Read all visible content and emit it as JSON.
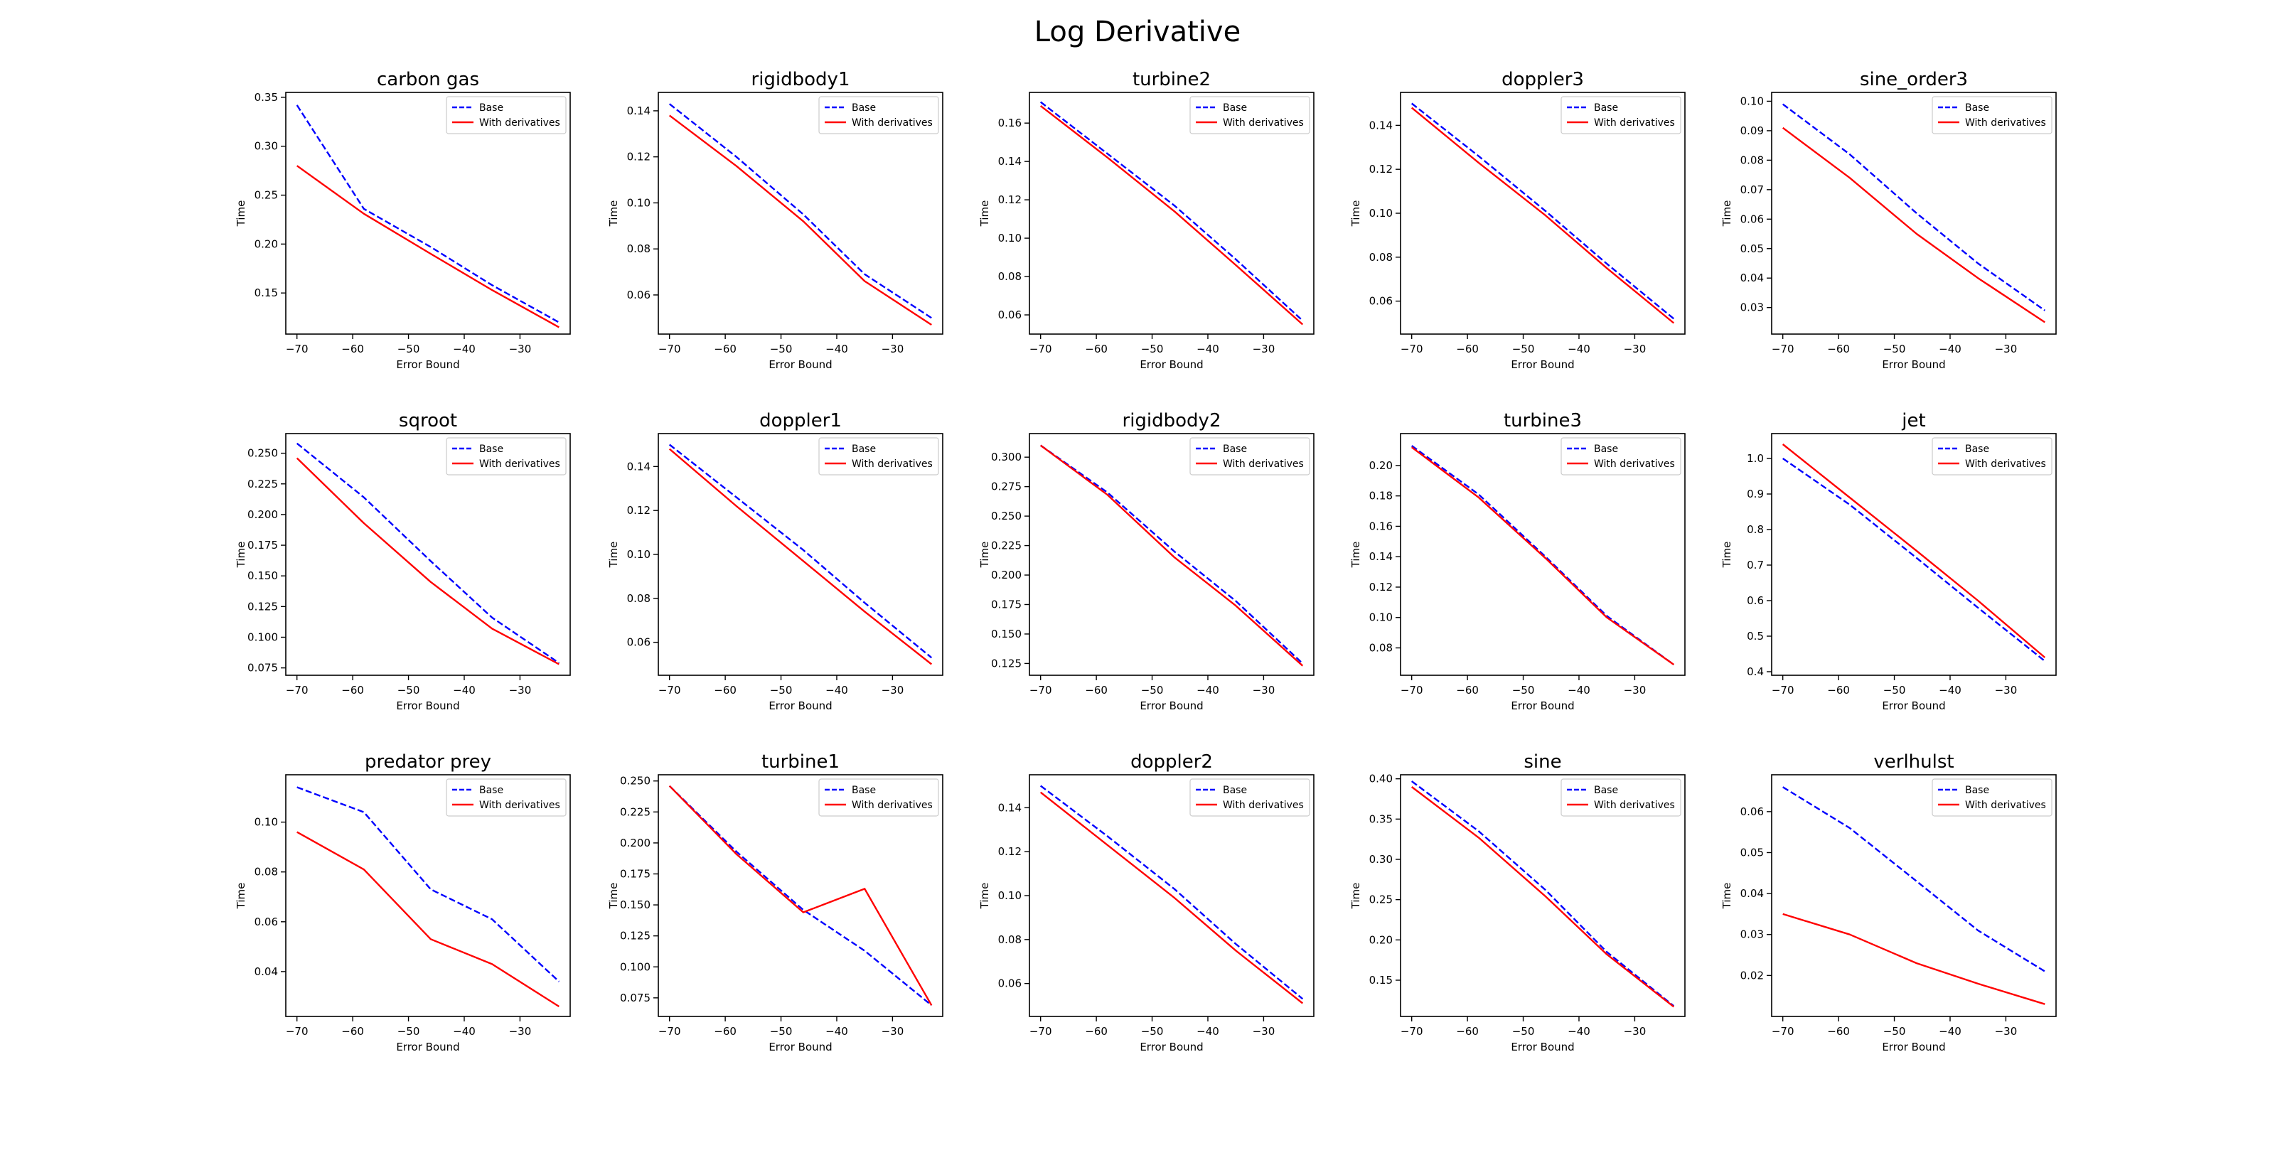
{
  "figure": {
    "title": "Log Derivative",
    "colors": {
      "base": "#0000ff",
      "deriv": "#ff0000"
    }
  },
  "chart_data": [
    {
      "type": "line",
      "title": "carbon gas",
      "xlabel": "Error Bound",
      "ylabel": "Time",
      "x": [
        -70,
        -58,
        -46,
        -35,
        -23
      ],
      "xlim": [
        -72,
        -21
      ],
      "ylim": [
        0.108,
        0.355
      ],
      "xticks": [
        -70,
        -60,
        -50,
        -40,
        -30
      ],
      "xticklabels": [
        "−70",
        "−60",
        "−50",
        "−40",
        "−30"
      ],
      "yticks": [
        0.15,
        0.2,
        0.25,
        0.3,
        0.35
      ],
      "yticklabels": [
        "0.15",
        "0.20",
        "0.25",
        "0.30",
        "0.35"
      ],
      "legend": "upper right",
      "series": [
        {
          "name": "Base",
          "style": "dashed",
          "color": "#0000ff",
          "values": [
            0.342,
            0.236,
            0.197,
            0.158,
            0.12
          ]
        },
        {
          "name": "With derivatives",
          "style": "solid",
          "color": "#ff0000",
          "values": [
            0.28,
            0.231,
            0.19,
            0.153,
            0.115
          ]
        }
      ]
    },
    {
      "type": "line",
      "title": "rigidbody1",
      "xlabel": "Error Bound",
      "ylabel": "Time",
      "x": [
        -70,
        -58,
        -46,
        -35,
        -23
      ],
      "xlim": [
        -72,
        -21
      ],
      "ylim": [
        0.043,
        0.148
      ],
      "xticks": [
        -70,
        -60,
        -50,
        -40,
        -30
      ],
      "xticklabels": [
        "−70",
        "−60",
        "−50",
        "−40",
        "−30"
      ],
      "yticks": [
        0.06,
        0.08,
        0.1,
        0.12,
        0.14
      ],
      "yticklabels": [
        "0.06",
        "0.08",
        "0.10",
        "0.12",
        "0.14"
      ],
      "legend": "upper right",
      "series": [
        {
          "name": "Base",
          "style": "dashed",
          "color": "#0000ff",
          "values": [
            0.143,
            0.12,
            0.095,
            0.069,
            0.05
          ]
        },
        {
          "name": "With derivatives",
          "style": "solid",
          "color": "#ff0000",
          "values": [
            0.138,
            0.116,
            0.092,
            0.066,
            0.047
          ]
        }
      ]
    },
    {
      "type": "line",
      "title": "turbine2",
      "xlabel": "Error Bound",
      "ylabel": "Time",
      "x": [
        -70,
        -58,
        -46,
        -35,
        -23
      ],
      "xlim": [
        -72,
        -21
      ],
      "ylim": [
        0.05,
        0.176
      ],
      "xticks": [
        -70,
        -60,
        -50,
        -40,
        -30
      ],
      "xticklabels": [
        "−70",
        "−60",
        "−50",
        "−40",
        "−30"
      ],
      "yticks": [
        0.06,
        0.08,
        0.1,
        0.12,
        0.14,
        0.16
      ],
      "yticklabels": [
        "0.06",
        "0.08",
        "0.10",
        "0.12",
        "0.14",
        "0.16"
      ],
      "legend": "upper right",
      "series": [
        {
          "name": "Base",
          "style": "dashed",
          "color": "#0000ff",
          "values": [
            0.171,
            0.144,
            0.117,
            0.089,
            0.057
          ]
        },
        {
          "name": "With derivatives",
          "style": "solid",
          "color": "#ff0000",
          "values": [
            0.169,
            0.142,
            0.114,
            0.086,
            0.055
          ]
        }
      ]
    },
    {
      "type": "line",
      "title": "doppler3",
      "xlabel": "Error Bound",
      "ylabel": "Time",
      "x": [
        -70,
        -58,
        -46,
        -35,
        -23
      ],
      "xlim": [
        -72,
        -21
      ],
      "ylim": [
        0.045,
        0.155
      ],
      "xticks": [
        -70,
        -60,
        -50,
        -40,
        -30
      ],
      "xticklabels": [
        "−70",
        "−60",
        "−50",
        "−40",
        "−30"
      ],
      "yticks": [
        0.06,
        0.08,
        0.1,
        0.12,
        0.14
      ],
      "yticklabels": [
        "0.06",
        "0.08",
        "0.10",
        "0.12",
        "0.14"
      ],
      "legend": "upper right",
      "series": [
        {
          "name": "Base",
          "style": "dashed",
          "color": "#0000ff",
          "values": [
            0.15,
            0.126,
            0.101,
            0.077,
            0.052
          ]
        },
        {
          "name": "With derivatives",
          "style": "solid",
          "color": "#ff0000",
          "values": [
            0.148,
            0.123,
            0.099,
            0.075,
            0.05
          ]
        }
      ]
    },
    {
      "type": "line",
      "title": "sine_order3",
      "xlabel": "Error Bound",
      "ylabel": "Time",
      "x": [
        -70,
        -58,
        -46,
        -35,
        -23
      ],
      "xlim": [
        -72,
        -21
      ],
      "ylim": [
        0.021,
        0.103
      ],
      "xticks": [
        -70,
        -60,
        -50,
        -40,
        -30
      ],
      "xticklabels": [
        "−70",
        "−60",
        "−50",
        "−40",
        "−30"
      ],
      "yticks": [
        0.03,
        0.04,
        0.05,
        0.06,
        0.07,
        0.08,
        0.09,
        0.1
      ],
      "yticklabels": [
        "0.03",
        "0.04",
        "0.05",
        "0.06",
        "0.07",
        "0.08",
        "0.09",
        "0.10"
      ],
      "legend": "upper right",
      "series": [
        {
          "name": "Base",
          "style": "dashed",
          "color": "#0000ff",
          "values": [
            0.099,
            0.082,
            0.062,
            0.045,
            0.029
          ]
        },
        {
          "name": "With derivatives",
          "style": "solid",
          "color": "#ff0000",
          "values": [
            0.091,
            0.074,
            0.055,
            0.04,
            0.025
          ]
        }
      ]
    },
    {
      "type": "line",
      "title": "sqroot",
      "xlabel": "Error Bound",
      "ylabel": "Time",
      "x": [
        -70,
        -58,
        -46,
        -35,
        -23
      ],
      "xlim": [
        -72,
        -21
      ],
      "ylim": [
        0.069,
        0.266
      ],
      "xticks": [
        -70,
        -60,
        -50,
        -40,
        -30
      ],
      "xticklabels": [
        "−70",
        "−60",
        "−50",
        "−40",
        "−30"
      ],
      "yticks": [
        0.075,
        0.1,
        0.125,
        0.15,
        0.175,
        0.2,
        0.225,
        0.25
      ],
      "yticklabels": [
        "0.075",
        "0.100",
        "0.125",
        "0.150",
        "0.175",
        "0.200",
        "0.225",
        "0.250"
      ],
      "legend": "upper right",
      "series": [
        {
          "name": "Base",
          "style": "dashed",
          "color": "#0000ff",
          "values": [
            0.258,
            0.214,
            0.162,
            0.116,
            0.079
          ]
        },
        {
          "name": "With derivatives",
          "style": "solid",
          "color": "#ff0000",
          "values": [
            0.246,
            0.193,
            0.145,
            0.107,
            0.078
          ]
        }
      ]
    },
    {
      "type": "line",
      "title": "doppler1",
      "xlabel": "Error Bound",
      "ylabel": "Time",
      "x": [
        -70,
        -58,
        -46,
        -35,
        -23
      ],
      "xlim": [
        -72,
        -21
      ],
      "ylim": [
        0.045,
        0.155
      ],
      "xticks": [
        -70,
        -60,
        -50,
        -40,
        -30
      ],
      "xticklabels": [
        "−70",
        "−60",
        "−50",
        "−40",
        "−30"
      ],
      "yticks": [
        0.06,
        0.08,
        0.1,
        0.12,
        0.14
      ],
      "yticklabels": [
        "0.06",
        "0.08",
        "0.10",
        "0.12",
        "0.14"
      ],
      "legend": "upper right",
      "series": [
        {
          "name": "Base",
          "style": "dashed",
          "color": "#0000ff",
          "values": [
            0.15,
            0.126,
            0.102,
            0.078,
            0.053
          ]
        },
        {
          "name": "With derivatives",
          "style": "solid",
          "color": "#ff0000",
          "values": [
            0.148,
            0.122,
            0.097,
            0.074,
            0.05
          ]
        }
      ]
    },
    {
      "type": "line",
      "title": "rigidbody2",
      "xlabel": "Error Bound",
      "ylabel": "Time",
      "x": [
        -70,
        -58,
        -46,
        -35,
        -23
      ],
      "xlim": [
        -72,
        -21
      ],
      "ylim": [
        0.115,
        0.32
      ],
      "xticks": [
        -70,
        -60,
        -50,
        -40,
        -30
      ],
      "xticklabels": [
        "−70",
        "−60",
        "−50",
        "−40",
        "−30"
      ],
      "yticks": [
        0.125,
        0.15,
        0.175,
        0.2,
        0.225,
        0.25,
        0.275,
        0.3
      ],
      "yticklabels": [
        "0.125",
        "0.150",
        "0.175",
        "0.200",
        "0.225",
        "0.250",
        "0.275",
        "0.300"
      ],
      "legend": "upper right",
      "series": [
        {
          "name": "Base",
          "style": "dashed",
          "color": "#0000ff",
          "values": [
            0.31,
            0.27,
            0.22,
            0.178,
            0.125
          ]
        },
        {
          "name": "With derivatives",
          "style": "solid",
          "color": "#ff0000",
          "values": [
            0.31,
            0.268,
            0.215,
            0.174,
            0.123
          ]
        }
      ]
    },
    {
      "type": "line",
      "title": "turbine3",
      "xlabel": "Error Bound",
      "ylabel": "Time",
      "x": [
        -70,
        -58,
        -46,
        -35,
        -23
      ],
      "xlim": [
        -72,
        -21
      ],
      "ylim": [
        0.062,
        0.221
      ],
      "xticks": [
        -70,
        -60,
        -50,
        -40,
        -30
      ],
      "xticklabels": [
        "−70",
        "−60",
        "−50",
        "−40",
        "−30"
      ],
      "yticks": [
        0.08,
        0.1,
        0.12,
        0.14,
        0.16,
        0.18,
        0.2
      ],
      "yticklabels": [
        "0.08",
        "0.10",
        "0.12",
        "0.14",
        "0.16",
        "0.18",
        "0.20"
      ],
      "legend": "upper right",
      "series": [
        {
          "name": "Base",
          "style": "dashed",
          "color": "#0000ff",
          "values": [
            0.213,
            0.181,
            0.14,
            0.101,
            0.069
          ]
        },
        {
          "name": "With derivatives",
          "style": "solid",
          "color": "#ff0000",
          "values": [
            0.212,
            0.179,
            0.139,
            0.1,
            0.069
          ]
        }
      ]
    },
    {
      "type": "line",
      "title": "jet",
      "xlabel": "Error Bound",
      "ylabel": "Time",
      "x": [
        -70,
        -58,
        -46,
        -35,
        -23
      ],
      "xlim": [
        -72,
        -21
      ],
      "ylim": [
        0.39,
        1.07
      ],
      "xticks": [
        -70,
        -60,
        -50,
        -40,
        -30
      ],
      "xticklabels": [
        "−70",
        "−60",
        "−50",
        "−40",
        "−30"
      ],
      "yticks": [
        0.4,
        0.5,
        0.6,
        0.7,
        0.8,
        0.9,
        1.0
      ],
      "yticklabels": [
        "0.4",
        "0.5",
        "0.6",
        "0.7",
        "0.8",
        "0.9",
        "1.0"
      ],
      "legend": "upper right",
      "series": [
        {
          "name": "Base",
          "style": "dashed",
          "color": "#0000ff",
          "values": [
            1.0,
            0.87,
            0.72,
            0.58,
            0.43
          ]
        },
        {
          "name": "With derivatives",
          "style": "solid",
          "color": "#ff0000",
          "values": [
            1.04,
            0.89,
            0.74,
            0.6,
            0.44
          ]
        }
      ]
    },
    {
      "type": "line",
      "title": "predator prey",
      "xlabel": "Error Bound",
      "ylabel": "Time",
      "x": [
        -70,
        -58,
        -46,
        -35,
        -23
      ],
      "xlim": [
        -72,
        -21
      ],
      "ylim": [
        0.022,
        0.119
      ],
      "xticks": [
        -70,
        -60,
        -50,
        -40,
        -30
      ],
      "xticklabels": [
        "−70",
        "−60",
        "−50",
        "−40",
        "−30"
      ],
      "yticks": [
        0.04,
        0.06,
        0.08,
        0.1
      ],
      "yticklabels": [
        "0.04",
        "0.06",
        "0.08",
        "0.10"
      ],
      "legend": "upper right",
      "series": [
        {
          "name": "Base",
          "style": "dashed",
          "color": "#0000ff",
          "values": [
            0.114,
            0.104,
            0.073,
            0.061,
            0.036
          ]
        },
        {
          "name": "With derivatives",
          "style": "solid",
          "color": "#ff0000",
          "values": [
            0.096,
            0.081,
            0.053,
            0.043,
            0.026
          ]
        }
      ]
    },
    {
      "type": "line",
      "title": "turbine1",
      "xlabel": "Error Bound",
      "ylabel": "Time",
      "x": [
        -70,
        -58,
        -46,
        -35,
        -23
      ],
      "xlim": [
        -72,
        -21
      ],
      "ylim": [
        0.06,
        0.255
      ],
      "xticks": [
        -70,
        -60,
        -50,
        -40,
        -30
      ],
      "xticklabels": [
        "−70",
        "−60",
        "−50",
        "−40",
        "−30"
      ],
      "yticks": [
        0.075,
        0.1,
        0.125,
        0.15,
        0.175,
        0.2,
        0.225,
        0.25
      ],
      "yticklabels": [
        "0.075",
        "0.100",
        "0.125",
        "0.150",
        "0.175",
        "0.200",
        "0.225",
        "0.250"
      ],
      "legend": "upper right",
      "series": [
        {
          "name": "Base",
          "style": "dashed",
          "color": "#0000ff",
          "values": [
            0.246,
            0.193,
            0.146,
            0.113,
            0.069
          ]
        },
        {
          "name": "With derivatives",
          "style": "solid",
          "color": "#ff0000",
          "values": [
            0.246,
            0.191,
            0.144,
            0.163,
            0.069
          ]
        }
      ]
    },
    {
      "type": "line",
      "title": "doppler2",
      "xlabel": "Error Bound",
      "ylabel": "Time",
      "x": [
        -70,
        -58,
        -46,
        -35,
        -23
      ],
      "xlim": [
        -72,
        -21
      ],
      "ylim": [
        0.045,
        0.155
      ],
      "xticks": [
        -70,
        -60,
        -50,
        -40,
        -30
      ],
      "xticklabels": [
        "−70",
        "−60",
        "−50",
        "−40",
        "−30"
      ],
      "yticks": [
        0.06,
        0.08,
        0.1,
        0.12,
        0.14
      ],
      "yticklabels": [
        "0.06",
        "0.08",
        "0.10",
        "0.12",
        "0.14"
      ],
      "legend": "upper right",
      "series": [
        {
          "name": "Base",
          "style": "dashed",
          "color": "#0000ff",
          "values": [
            0.15,
            0.127,
            0.103,
            0.078,
            0.053
          ]
        },
        {
          "name": "With derivatives",
          "style": "solid",
          "color": "#ff0000",
          "values": [
            0.147,
            0.123,
            0.099,
            0.075,
            0.051
          ]
        }
      ]
    },
    {
      "type": "line",
      "title": "sine",
      "xlabel": "Error Bound",
      "ylabel": "Time",
      "x": [
        -70,
        -58,
        -46,
        -35,
        -23
      ],
      "xlim": [
        -72,
        -21
      ],
      "ylim": [
        0.105,
        0.405
      ],
      "xticks": [
        -70,
        -60,
        -50,
        -40,
        -30
      ],
      "xticklabels": [
        "−70",
        "−60",
        "−50",
        "−40",
        "−30"
      ],
      "yticks": [
        0.15,
        0.2,
        0.25,
        0.3,
        0.35,
        0.4
      ],
      "yticklabels": [
        "0.15",
        "0.20",
        "0.25",
        "0.30",
        "0.35",
        "0.40"
      ],
      "legend": "upper right",
      "series": [
        {
          "name": "Base",
          "style": "dashed",
          "color": "#0000ff",
          "values": [
            0.397,
            0.335,
            0.262,
            0.185,
            0.118
          ]
        },
        {
          "name": "With derivatives",
          "style": "solid",
          "color": "#ff0000",
          "values": [
            0.39,
            0.327,
            0.254,
            0.182,
            0.117
          ]
        }
      ]
    },
    {
      "type": "line",
      "title": "verlhulst",
      "xlabel": "Error Bound",
      "ylabel": "Time",
      "x": [
        -70,
        -58,
        -46,
        -35,
        -23
      ],
      "xlim": [
        -72,
        -21
      ],
      "ylim": [
        0.01,
        0.069
      ],
      "xticks": [
        -70,
        -60,
        -50,
        -40,
        -30
      ],
      "xticklabels": [
        "−70",
        "−60",
        "−50",
        "−40",
        "−30"
      ],
      "yticks": [
        0.02,
        0.03,
        0.04,
        0.05,
        0.06
      ],
      "yticklabels": [
        "0.02",
        "0.03",
        "0.04",
        "0.05",
        "0.06"
      ],
      "legend": "upper right",
      "series": [
        {
          "name": "Base",
          "style": "dashed",
          "color": "#0000ff",
          "values": [
            0.066,
            0.056,
            0.043,
            0.031,
            0.021
          ]
        },
        {
          "name": "With derivatives",
          "style": "solid",
          "color": "#ff0000",
          "values": [
            0.035,
            0.03,
            0.023,
            0.018,
            0.013
          ]
        }
      ]
    }
  ]
}
